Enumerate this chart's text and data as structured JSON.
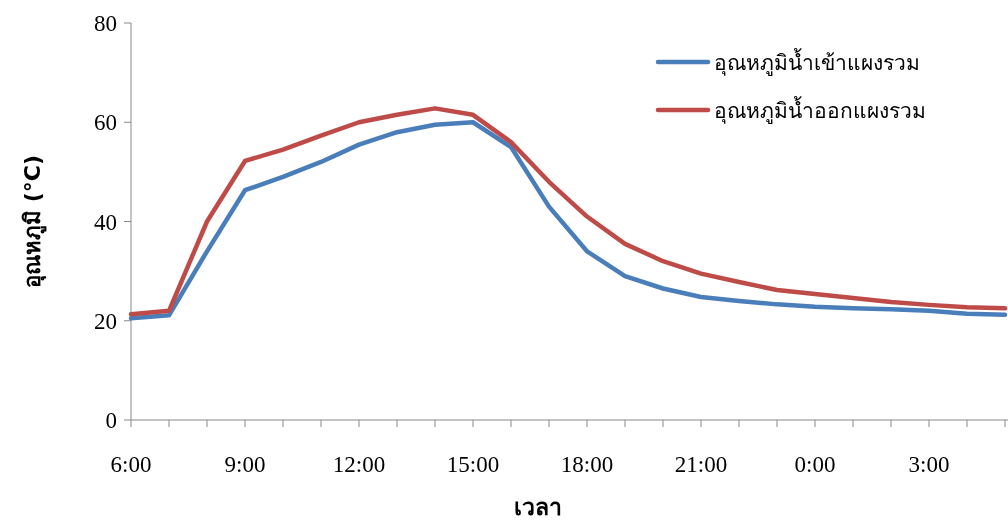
{
  "chart_data": {
    "type": "line",
    "xlabel": "เวลา",
    "ylabel": "อุณหภูมิ  (°C)",
    "categories": [
      "6:00",
      null,
      null,
      "9:00",
      null,
      null,
      "12:00",
      null,
      null,
      "15:00",
      null,
      null,
      "18:00",
      null,
      null,
      "21:00",
      null,
      null,
      "0:00",
      null,
      null,
      "3:00",
      null,
      null
    ],
    "series": [
      {
        "name": "อุณหภูมิน้ำเข้าแผงรวม",
        "color": "#4a7ebb",
        "values": [
          20.5,
          21.1,
          34,
          46.3,
          49,
          52,
          55.5,
          58,
          59.5,
          60,
          55,
          43,
          34,
          29,
          26.5,
          24.8,
          24,
          23.3,
          22.8,
          22.5,
          22.3,
          22,
          21.4,
          21.2
        ]
      },
      {
        "name": "อุณหภูมิน้ำออกแผงรวม",
        "color": "#be4b48",
        "values": [
          21.3,
          22,
          40,
          52.2,
          54.5,
          57.3,
          60,
          61.5,
          62.8,
          61.5,
          56,
          48,
          41,
          35.5,
          32,
          29.5,
          27.8,
          26.2,
          25.4,
          24.6,
          23.8,
          23.2,
          22.7,
          22.5
        ]
      }
    ],
    "ylim": [
      0,
      80
    ],
    "yticks": [
      0,
      20,
      40,
      60,
      80
    ],
    "legend": "top right"
  }
}
